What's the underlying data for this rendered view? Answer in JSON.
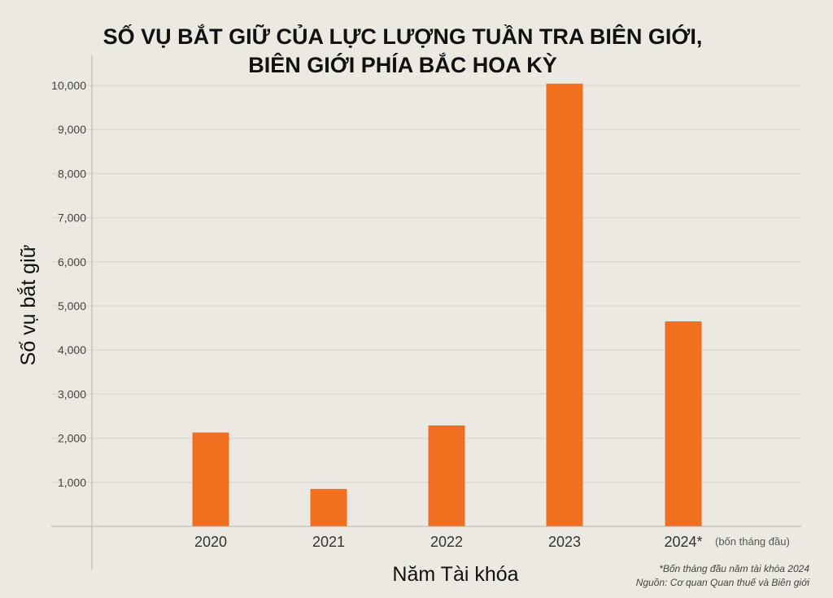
{
  "chart_data": {
    "type": "bar",
    "title_lines": [
      "SỐ VỤ BẮT GIỮ CỦA LỰC LƯỢNG TUẦN TRA BIÊN GIỚI,",
      "BIÊN GIỚI PHÍA BẮC HOA KỲ"
    ],
    "xlabel": "Năm Tài khóa",
    "ylabel": "Số vụ bắt giữ",
    "categories": [
      "2020",
      "2021",
      "2022",
      "2023",
      "2024*"
    ],
    "category_note": "(bốn tháng đầu)",
    "values": [
      2130,
      850,
      2290,
      10040,
      4650
    ],
    "ylim": [
      0,
      10000
    ],
    "yticks": [
      1000,
      2000,
      3000,
      4000,
      5000,
      6000,
      7000,
      8000,
      9000,
      10000
    ],
    "ytick_labels": [
      "1,000",
      "2,000",
      "3,000",
      "4,000",
      "5,000",
      "6,000",
      "7,000",
      "8,000",
      "9,000",
      "10,000"
    ],
    "grid": true,
    "bar_color": "#f07020",
    "grid_color": "#d8d5cc",
    "footnote": "*Bốn tháng đầu năm tài khóa 2024",
    "source": "Nguồn: Cơ quan Quan thuế và Biên giới"
  }
}
